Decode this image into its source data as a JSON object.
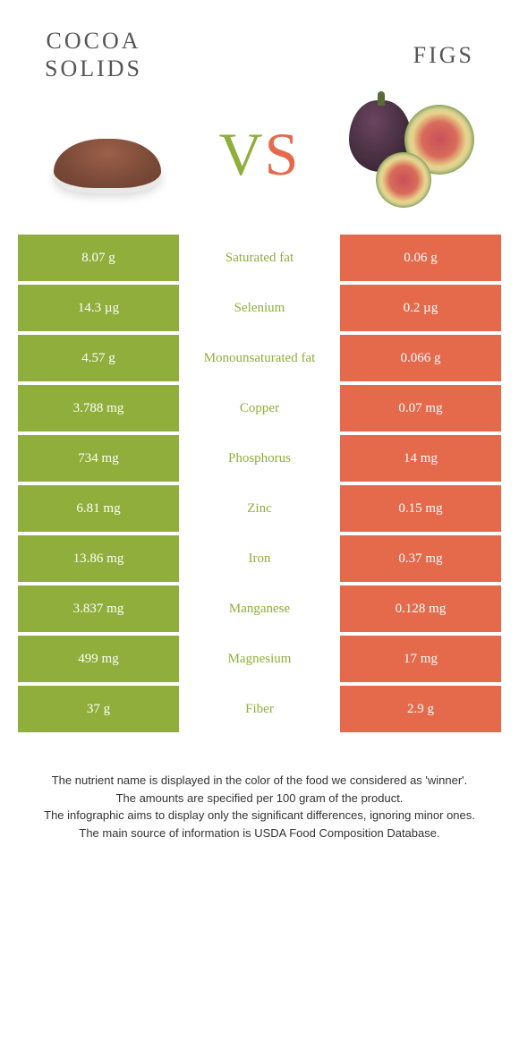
{
  "header": {
    "left_title": "COCOA\nSOLIDS",
    "right_title": "FIGS",
    "vs_v": "V",
    "vs_s": "S"
  },
  "colors": {
    "green": "#8fae3b",
    "orange": "#e56a4c",
    "white": "#ffffff"
  },
  "rows": [
    {
      "nutrient": "Saturated fat",
      "left": "8.07 g",
      "right": "0.06 g",
      "winner": "left"
    },
    {
      "nutrient": "Selenium",
      "left": "14.3 µg",
      "right": "0.2 µg",
      "winner": "left"
    },
    {
      "nutrient": "Monounsaturated fat",
      "left": "4.57 g",
      "right": "0.066 g",
      "winner": "left"
    },
    {
      "nutrient": "Copper",
      "left": "3.788 mg",
      "right": "0.07 mg",
      "winner": "left"
    },
    {
      "nutrient": "Phosphorus",
      "left": "734 mg",
      "right": "14 mg",
      "winner": "left"
    },
    {
      "nutrient": "Zinc",
      "left": "6.81 mg",
      "right": "0.15 mg",
      "winner": "left"
    },
    {
      "nutrient": "Iron",
      "left": "13.86 mg",
      "right": "0.37 mg",
      "winner": "left"
    },
    {
      "nutrient": "Manganese",
      "left": "3.837 mg",
      "right": "0.128 mg",
      "winner": "left"
    },
    {
      "nutrient": "Magnesium",
      "left": "499 mg",
      "right": "17 mg",
      "winner": "left"
    },
    {
      "nutrient": "Fiber",
      "left": "37 g",
      "right": "2.9 g",
      "winner": "left"
    }
  ],
  "footer": {
    "line1": "The nutrient name is displayed in the color of the food we considered as 'winner'.",
    "line2": "The amounts are specified per 100 gram of the product.",
    "line3": "The infographic aims to display only the significant differences, ignoring minor ones.",
    "line4": "The main source of information is USDA Food Composition Database."
  }
}
